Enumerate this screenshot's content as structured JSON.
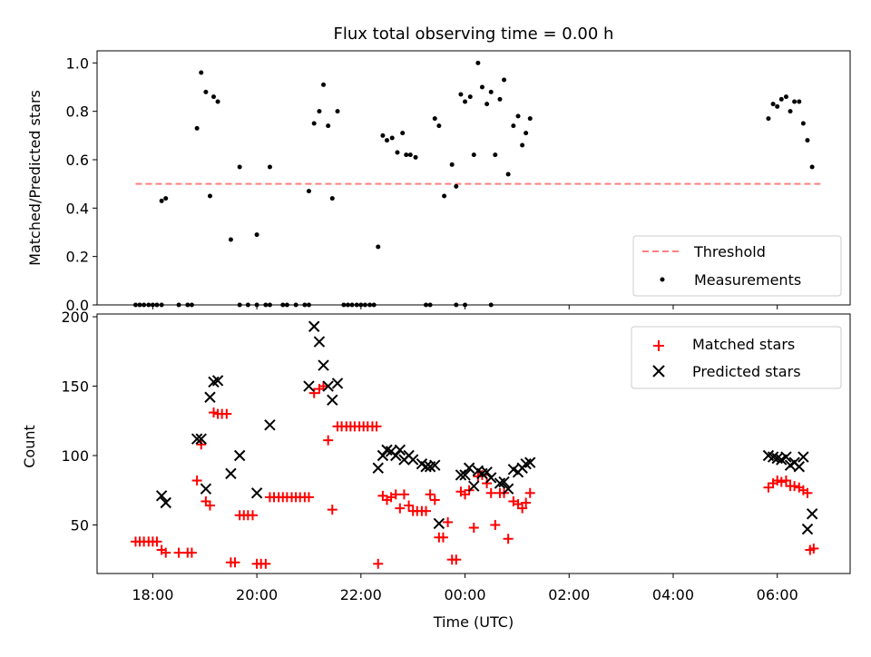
{
  "title": "Flux total observing time = 0.00 h",
  "colors": {
    "threshold": "#ff7f7f",
    "measurements": "#000000",
    "matched": "#ff0000",
    "predicted": "#000000"
  },
  "chart_data": [
    {
      "type": "scatter",
      "title": "Flux total observing time = 0.00 h",
      "xlabel": "",
      "ylabel": "Matched/Predicted stars",
      "ylim": [
        0,
        1.05
      ],
      "xlim_hours": [
        16.93,
        31.4
      ],
      "yticks": [
        0.0,
        0.2,
        0.4,
        0.6,
        0.8,
        1.0
      ],
      "ytick_labels": [
        "0.0",
        "0.2",
        "0.4",
        "0.6",
        "0.8",
        "1.0"
      ],
      "legend_position": "lower-right",
      "legend": [
        "Threshold",
        "Measurements"
      ],
      "threshold": {
        "name": "Threshold",
        "y": 0.5,
        "x_range": [
          17.67,
          30.83
        ]
      },
      "series": [
        {
          "name": "Measurements",
          "points": [
            [
              17.67,
              0
            ],
            [
              17.75,
              0
            ],
            [
              17.83,
              0
            ],
            [
              17.92,
              0
            ],
            [
              18.0,
              0
            ],
            [
              18.08,
              0
            ],
            [
              18.17,
              0
            ],
            [
              18.17,
              0.43
            ],
            [
              18.25,
              0.44
            ],
            [
              18.5,
              0
            ],
            [
              18.67,
              0
            ],
            [
              18.75,
              0
            ],
            [
              18.85,
              0.73
            ],
            [
              18.93,
              0.96
            ],
            [
              19.02,
              0.88
            ],
            [
              19.1,
              0.45
            ],
            [
              19.17,
              0.86
            ],
            [
              19.25,
              0.84
            ],
            [
              19.5,
              0.27
            ],
            [
              19.67,
              0.57
            ],
            [
              19.67,
              0
            ],
            [
              19.83,
              0
            ],
            [
              20.0,
              0.29
            ],
            [
              20.0,
              0
            ],
            [
              20.17,
              0
            ],
            [
              20.25,
              0
            ],
            [
              20.25,
              0.57
            ],
            [
              20.5,
              0
            ],
            [
              20.58,
              0
            ],
            [
              20.75,
              0
            ],
            [
              20.92,
              0
            ],
            [
              21.0,
              0
            ],
            [
              21.0,
              0.47
            ],
            [
              21.1,
              0.75
            ],
            [
              21.2,
              0.8
            ],
            [
              21.28,
              0.91
            ],
            [
              21.37,
              0.74
            ],
            [
              21.45,
              0.44
            ],
            [
              21.55,
              0.8
            ],
            [
              21.67,
              0
            ],
            [
              21.75,
              0
            ],
            [
              21.83,
              0
            ],
            [
              21.92,
              0
            ],
            [
              22.0,
              0
            ],
            [
              22.08,
              0
            ],
            [
              22.17,
              0
            ],
            [
              22.25,
              0
            ],
            [
              22.33,
              0.24
            ],
            [
              22.42,
              0.7
            ],
            [
              22.5,
              0.68
            ],
            [
              22.6,
              0.69
            ],
            [
              22.7,
              0.63
            ],
            [
              22.8,
              0.71
            ],
            [
              22.87,
              0.62
            ],
            [
              22.95,
              0.62
            ],
            [
              23.05,
              0.61
            ],
            [
              23.25,
              0
            ],
            [
              23.33,
              0
            ],
            [
              23.42,
              0.77
            ],
            [
              23.5,
              0.74
            ],
            [
              23.6,
              0.45
            ],
            [
              23.75,
              0.58
            ],
            [
              23.83,
              0.49
            ],
            [
              23.83,
              0
            ],
            [
              23.92,
              0.87
            ],
            [
              24.0,
              0.84
            ],
            [
              24.0,
              0
            ],
            [
              24.1,
              0.86
            ],
            [
              24.17,
              0.62
            ],
            [
              24.25,
              1.0
            ],
            [
              24.33,
              0.9
            ],
            [
              24.42,
              0.83
            ],
            [
              24.5,
              0
            ],
            [
              24.5,
              0.88
            ],
            [
              24.58,
              0.62
            ],
            [
              24.67,
              0.85
            ],
            [
              24.75,
              0.93
            ],
            [
              24.83,
              0.54
            ],
            [
              24.93,
              0.74
            ],
            [
              25.02,
              0.78
            ],
            [
              25.1,
              0.66
            ],
            [
              25.17,
              0.71
            ],
            [
              25.25,
              0.77
            ],
            [
              29.83,
              0.77
            ],
            [
              29.92,
              0.83
            ],
            [
              30.0,
              0.82
            ],
            [
              30.08,
              0.85
            ],
            [
              30.17,
              0.86
            ],
            [
              30.25,
              0.8
            ],
            [
              30.33,
              0.84
            ],
            [
              30.42,
              0.84
            ],
            [
              30.5,
              0.75
            ],
            [
              30.58,
              0.68
            ],
            [
              30.67,
              0.57
            ]
          ]
        }
      ]
    },
    {
      "type": "scatter",
      "title": "",
      "xlabel": "Time (UTC)",
      "ylabel": "Count",
      "ylim": [
        15,
        202
      ],
      "xlim_hours": [
        16.93,
        31.4
      ],
      "yticks": [
        50,
        100,
        150,
        200
      ],
      "ytick_labels": [
        "50",
        "100",
        "150",
        "200"
      ],
      "xticks_hours": [
        18,
        20,
        22,
        24,
        26,
        28,
        30
      ],
      "xtick_labels": [
        "18:00",
        "20:00",
        "22:00",
        "00:00",
        "02:00",
        "04:00",
        "06:00"
      ],
      "legend_position": "top-right",
      "legend": [
        "Matched stars",
        "Predicted stars"
      ],
      "series": [
        {
          "name": "Matched stars",
          "points": [
            [
              17.67,
              38
            ],
            [
              17.75,
              38
            ],
            [
              17.83,
              38
            ],
            [
              17.92,
              38
            ],
            [
              18.0,
              38
            ],
            [
              18.08,
              38
            ],
            [
              18.17,
              32
            ],
            [
              18.25,
              30
            ],
            [
              18.5,
              30
            ],
            [
              18.67,
              30
            ],
            [
              18.75,
              30
            ],
            [
              18.85,
              82
            ],
            [
              18.93,
              108
            ],
            [
              19.02,
              67
            ],
            [
              19.1,
              64
            ],
            [
              19.17,
              131
            ],
            [
              19.25,
              130
            ],
            [
              19.33,
              130
            ],
            [
              19.42,
              130
            ],
            [
              19.5,
              23
            ],
            [
              19.58,
              23
            ],
            [
              19.67,
              57
            ],
            [
              19.75,
              57
            ],
            [
              19.83,
              57
            ],
            [
              19.92,
              57
            ],
            [
              20.0,
              22
            ],
            [
              20.08,
              22
            ],
            [
              20.17,
              22
            ],
            [
              20.25,
              70
            ],
            [
              20.33,
              70
            ],
            [
              20.42,
              70
            ],
            [
              20.5,
              70
            ],
            [
              20.58,
              70
            ],
            [
              20.67,
              70
            ],
            [
              20.75,
              70
            ],
            [
              20.83,
              70
            ],
            [
              20.92,
              70
            ],
            [
              21.0,
              70
            ],
            [
              21.1,
              145
            ],
            [
              21.2,
              148
            ],
            [
              21.28,
              150
            ],
            [
              21.37,
              111
            ],
            [
              21.45,
              61
            ],
            [
              21.55,
              121
            ],
            [
              21.63,
              121
            ],
            [
              21.72,
              121
            ],
            [
              21.8,
              121
            ],
            [
              21.88,
              121
            ],
            [
              21.97,
              121
            ],
            [
              22.05,
              121
            ],
            [
              22.13,
              121
            ],
            [
              22.22,
              121
            ],
            [
              22.3,
              121
            ],
            [
              22.33,
              22
            ],
            [
              22.42,
              71
            ],
            [
              22.5,
              68
            ],
            [
              22.58,
              70
            ],
            [
              22.67,
              72
            ],
            [
              22.75,
              62
            ],
            [
              22.83,
              72
            ],
            [
              22.92,
              64
            ],
            [
              23.0,
              60
            ],
            [
              23.08,
              60
            ],
            [
              23.17,
              60
            ],
            [
              23.25,
              60
            ],
            [
              23.33,
              72
            ],
            [
              23.42,
              68
            ],
            [
              23.5,
              41
            ],
            [
              23.58,
              41
            ],
            [
              23.67,
              52
            ],
            [
              23.75,
              25
            ],
            [
              23.83,
              25
            ],
            [
              23.92,
              74
            ],
            [
              24.0,
              72
            ],
            [
              24.08,
              75
            ],
            [
              24.17,
              48
            ],
            [
              24.25,
              85
            ],
            [
              24.33,
              86
            ],
            [
              24.42,
              80
            ],
            [
              24.5,
              73
            ],
            [
              24.58,
              50
            ],
            [
              24.67,
              73
            ],
            [
              24.75,
              73
            ],
            [
              24.83,
              40
            ],
            [
              24.93,
              67
            ],
            [
              25.02,
              65
            ],
            [
              25.1,
              62
            ],
            [
              25.17,
              66
            ],
            [
              25.25,
              73
            ],
            [
              29.83,
              77
            ],
            [
              29.92,
              80
            ],
            [
              30.0,
              82
            ],
            [
              30.08,
              81
            ],
            [
              30.17,
              82
            ],
            [
              30.25,
              78
            ],
            [
              30.33,
              78
            ],
            [
              30.42,
              77
            ],
            [
              30.5,
              75
            ],
            [
              30.58,
              73
            ],
            [
              30.63,
              32
            ],
            [
              30.7,
              33
            ]
          ]
        },
        {
          "name": "Predicted stars",
          "points": [
            [
              18.17,
              71
            ],
            [
              18.25,
              66
            ],
            [
              18.85,
              112
            ],
            [
              18.93,
              112
            ],
            [
              19.02,
              76
            ],
            [
              19.1,
              142
            ],
            [
              19.17,
              153
            ],
            [
              19.25,
              154
            ],
            [
              19.5,
              87
            ],
            [
              19.67,
              100
            ],
            [
              20.0,
              73
            ],
            [
              20.25,
              122
            ],
            [
              21.0,
              150
            ],
            [
              21.1,
              193
            ],
            [
              21.2,
              182
            ],
            [
              21.28,
              165
            ],
            [
              21.37,
              150
            ],
            [
              21.45,
              140
            ],
            [
              21.55,
              152
            ],
            [
              22.33,
              91
            ],
            [
              22.42,
              100
            ],
            [
              22.5,
              104
            ],
            [
              22.58,
              103
            ],
            [
              22.67,
              100
            ],
            [
              22.75,
              104
            ],
            [
              22.83,
              97
            ],
            [
              22.92,
              100
            ],
            [
              23.0,
              97
            ],
            [
              23.17,
              94
            ],
            [
              23.25,
              92
            ],
            [
              23.33,
              92
            ],
            [
              23.42,
              93
            ],
            [
              23.5,
              51
            ],
            [
              23.92,
              86
            ],
            [
              24.0,
              86
            ],
            [
              24.08,
              91
            ],
            [
              24.17,
              78
            ],
            [
              24.25,
              89
            ],
            [
              24.33,
              87
            ],
            [
              24.42,
              88
            ],
            [
              24.5,
              84
            ],
            [
              24.67,
              80
            ],
            [
              24.75,
              81
            ],
            [
              24.83,
              76
            ],
            [
              24.93,
              90
            ],
            [
              25.02,
              88
            ],
            [
              25.1,
              91
            ],
            [
              25.17,
              94
            ],
            [
              25.25,
              95
            ],
            [
              29.83,
              100
            ],
            [
              29.92,
              99
            ],
            [
              30.0,
              98
            ],
            [
              30.08,
              97
            ],
            [
              30.17,
              99
            ],
            [
              30.25,
              93
            ],
            [
              30.33,
              95
            ],
            [
              30.42,
              92
            ],
            [
              30.5,
              99
            ],
            [
              30.58,
              47
            ],
            [
              30.67,
              58
            ]
          ]
        }
      ]
    }
  ]
}
